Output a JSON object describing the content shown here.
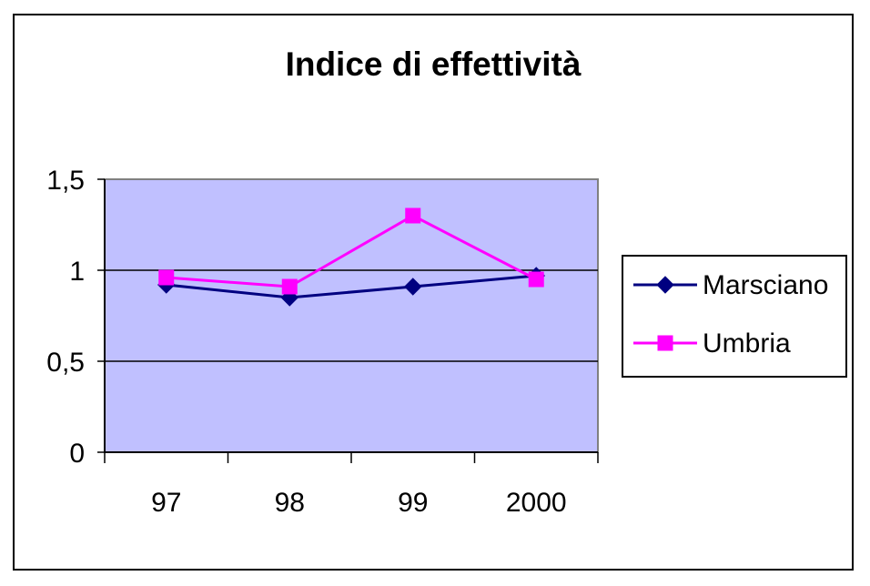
{
  "chart_data": {
    "type": "line",
    "title": "Indice di effettività",
    "categories": [
      "97",
      "98",
      "99",
      "2000"
    ],
    "y_ticks": [
      "0",
      "0,5",
      "1",
      "1,5"
    ],
    "ylim": [
      0,
      1.5
    ],
    "grid": "horizontal",
    "legend_position": "right",
    "plot_background": "#c0c0ff",
    "series": [
      {
        "name": "Marsciano",
        "values": [
          0.92,
          0.85,
          0.91,
          0.97
        ],
        "color": "#000080",
        "marker": "diamond"
      },
      {
        "name": "Umbria",
        "values": [
          0.96,
          0.91,
          1.3,
          0.95
        ],
        "color": "#ff00ff",
        "marker": "square"
      }
    ]
  }
}
